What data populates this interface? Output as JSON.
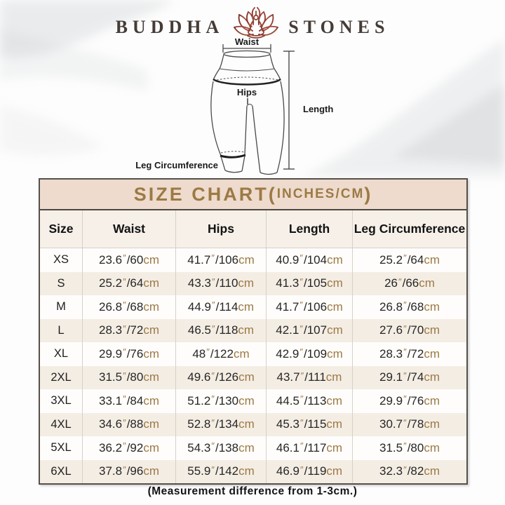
{
  "brand": {
    "left": "BUDDHA",
    "right": "STONES"
  },
  "logo_icon": "lotus-meditation-icon",
  "diagram": {
    "waist": "Waist",
    "hips": "Hips",
    "length": "Length",
    "leg": "Leg Circumference"
  },
  "table": {
    "title_main": "SIZE CHART(",
    "title_sub": "INCHES/CM",
    "title_close": ")",
    "columns": [
      "Size",
      "Waist",
      "Hips",
      "Length",
      "Leg Circumference"
    ],
    "unit_inch_mark": "″",
    "unit_cm": "cm",
    "rows": [
      {
        "size": "XS",
        "waist": [
          "23.6",
          "60"
        ],
        "hips": [
          "41.7",
          "106"
        ],
        "length": [
          "40.9",
          "104"
        ],
        "leg": [
          "25.2",
          "64"
        ]
      },
      {
        "size": "S",
        "waist": [
          "25.2",
          "64"
        ],
        "hips": [
          "43.3",
          "110"
        ],
        "length": [
          "41.3",
          "105"
        ],
        "leg": [
          "26",
          "66"
        ]
      },
      {
        "size": "M",
        "waist": [
          "26.8",
          "68"
        ],
        "hips": [
          "44.9",
          "114"
        ],
        "length": [
          "41.7",
          "106"
        ],
        "leg": [
          "26.8",
          "68"
        ]
      },
      {
        "size": "L",
        "waist": [
          "28.3",
          "72"
        ],
        "hips": [
          "46.5",
          "118"
        ],
        "length": [
          "42.1",
          "107"
        ],
        "leg": [
          "27.6",
          "70"
        ]
      },
      {
        "size": "XL",
        "waist": [
          "29.9",
          "76"
        ],
        "hips": [
          "48",
          "122"
        ],
        "length": [
          "42.9",
          "109"
        ],
        "leg": [
          "28.3",
          "72"
        ]
      },
      {
        "size": "2XL",
        "waist": [
          "31.5",
          "80"
        ],
        "hips": [
          "49.6",
          "126"
        ],
        "length": [
          "43.7",
          "111"
        ],
        "leg": [
          "29.1",
          "74"
        ]
      },
      {
        "size": "3XL",
        "waist": [
          "33.1",
          "84"
        ],
        "hips": [
          "51.2",
          "130"
        ],
        "length": [
          "44.5",
          "113"
        ],
        "leg": [
          "29.9",
          "76"
        ]
      },
      {
        "size": "4XL",
        "waist": [
          "34.6",
          "88"
        ],
        "hips": [
          "52.8",
          "134"
        ],
        "length": [
          "45.3",
          "115"
        ],
        "leg": [
          "30.7",
          "78"
        ]
      },
      {
        "size": "5XL",
        "waist": [
          "36.2",
          "92"
        ],
        "hips": [
          "54.3",
          "138"
        ],
        "length": [
          "46.1",
          "117"
        ],
        "leg": [
          "31.5",
          "80"
        ]
      },
      {
        "size": "6XL",
        "waist": [
          "37.8",
          "96"
        ],
        "hips": [
          "55.9",
          "142"
        ],
        "length": [
          "46.9",
          "119"
        ],
        "leg": [
          "32.3",
          "82"
        ]
      }
    ]
  },
  "footer_note": "(Measurement difference from 1-3cm.)",
  "colors": {
    "accent_gold": "#9c7a45",
    "title_bg": "#eedbcd",
    "header_row_bg": "#f6f0e9",
    "row_alt_bg": "#f4ede4",
    "row_bg": "#fefdfb",
    "text_dark": "#262626",
    "logo_red": "#8d3a30"
  }
}
